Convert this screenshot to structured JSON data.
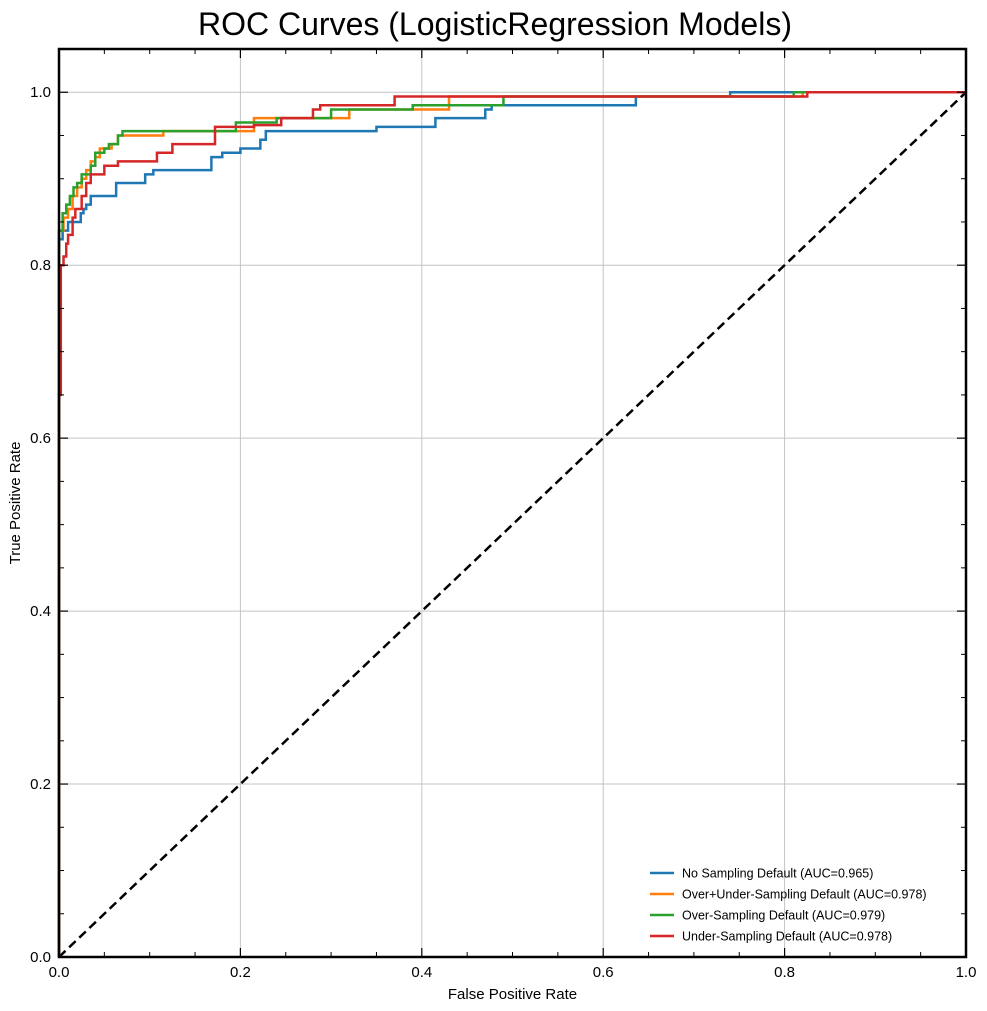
{
  "chart_data": {
    "type": "line",
    "title": "ROC Curves (LogisticRegression Models)",
    "xlabel": "False Positive Rate",
    "ylabel": "True Positive Rate",
    "xlim": [
      0.0,
      1.0
    ],
    "ylim": [
      0.0,
      1.05
    ],
    "xticks": [
      0.0,
      0.2,
      0.4,
      0.6,
      0.8,
      1.0
    ],
    "yticks": [
      0.0,
      0.2,
      0.4,
      0.6,
      0.8,
      1.0
    ],
    "xtick_labels": [
      "0.0",
      "0.2",
      "0.4",
      "0.6",
      "0.8",
      "1.0"
    ],
    "ytick_labels": [
      "0.0",
      "0.2",
      "0.4",
      "0.6",
      "0.8",
      "1.0"
    ],
    "grid": true,
    "legend_position": "lower-right",
    "baseline": {
      "x": [
        0,
        1
      ],
      "y": [
        0,
        1
      ],
      "style": "dashed",
      "color": "#000000"
    },
    "series": [
      {
        "name": "No Sampling Default (AUC=0.965)",
        "color": "#1f77b4",
        "x": [
          0,
          0.0,
          0.004,
          0.004,
          0.01,
          0.01,
          0.024,
          0.024,
          0.027,
          0.027,
          0.03,
          0.03,
          0.035,
          0.035,
          0.063,
          0.063,
          0.095,
          0.095,
          0.104,
          0.104,
          0.168,
          0.168,
          0.18,
          0.18,
          0.2,
          0.2,
          0.222,
          0.222,
          0.228,
          0.228,
          0.35,
          0.35,
          0.415,
          0.415,
          0.47,
          0.47,
          0.477,
          0.477,
          0.636,
          0.636,
          0.74,
          0.74,
          1.0
        ],
        "y": [
          0,
          0.83,
          0.83,
          0.84,
          0.84,
          0.85,
          0.85,
          0.86,
          0.86,
          0.865,
          0.865,
          0.87,
          0.87,
          0.88,
          0.88,
          0.895,
          0.895,
          0.905,
          0.905,
          0.91,
          0.91,
          0.925,
          0.925,
          0.93,
          0.93,
          0.935,
          0.935,
          0.945,
          0.945,
          0.955,
          0.955,
          0.96,
          0.96,
          0.97,
          0.97,
          0.98,
          0.98,
          0.985,
          0.985,
          0.995,
          0.995,
          1.0,
          1.0
        ]
      },
      {
        "name": "Over+Under-Sampling Default (AUC=0.978)",
        "color": "#ff7f0e",
        "x": [
          0,
          0.0,
          0.005,
          0.005,
          0.01,
          0.01,
          0.015,
          0.015,
          0.02,
          0.02,
          0.025,
          0.025,
          0.03,
          0.03,
          0.035,
          0.035,
          0.04,
          0.04,
          0.045,
          0.045,
          0.058,
          0.058,
          0.065,
          0.065,
          0.115,
          0.115,
          0.215,
          0.215,
          0.32,
          0.32,
          0.43,
          0.43,
          0.82,
          0.82,
          1.0
        ],
        "y": [
          0,
          0.84,
          0.84,
          0.855,
          0.855,
          0.865,
          0.865,
          0.88,
          0.88,
          0.89,
          0.89,
          0.9,
          0.9,
          0.91,
          0.91,
          0.92,
          0.92,
          0.925,
          0.925,
          0.935,
          0.935,
          0.94,
          0.94,
          0.95,
          0.95,
          0.955,
          0.955,
          0.97,
          0.97,
          0.98,
          0.98,
          0.995,
          0.995,
          1.0,
          1.0
        ]
      },
      {
        "name": "Over-Sampling Default (AUC=0.979)",
        "color": "#2ca02c",
        "x": [
          0,
          0.0,
          0.004,
          0.004,
          0.008,
          0.008,
          0.012,
          0.012,
          0.016,
          0.016,
          0.02,
          0.02,
          0.025,
          0.025,
          0.035,
          0.035,
          0.04,
          0.04,
          0.05,
          0.05,
          0.055,
          0.055,
          0.065,
          0.065,
          0.07,
          0.07,
          0.195,
          0.195,
          0.24,
          0.24,
          0.3,
          0.3,
          0.39,
          0.39,
          0.49,
          0.49,
          0.81,
          0.81,
          1.0
        ],
        "y": [
          0,
          0.84,
          0.84,
          0.86,
          0.86,
          0.87,
          0.87,
          0.88,
          0.88,
          0.89,
          0.89,
          0.895,
          0.895,
          0.905,
          0.905,
          0.915,
          0.915,
          0.93,
          0.93,
          0.935,
          0.935,
          0.94,
          0.94,
          0.95,
          0.95,
          0.955,
          0.955,
          0.965,
          0.965,
          0.97,
          0.97,
          0.98,
          0.98,
          0.985,
          0.985,
          0.995,
          0.995,
          1.0,
          1.0
        ]
      },
      {
        "name": "Under-Sampling Default (AUC=0.978)",
        "color": "#d62728",
        "x": [
          0,
          0.0,
          0.002,
          0.002,
          0.005,
          0.005,
          0.008,
          0.008,
          0.01,
          0.01,
          0.015,
          0.015,
          0.018,
          0.018,
          0.025,
          0.025,
          0.03,
          0.03,
          0.035,
          0.035,
          0.05,
          0.05,
          0.065,
          0.065,
          0.108,
          0.108,
          0.125,
          0.125,
          0.172,
          0.172,
          0.215,
          0.215,
          0.245,
          0.245,
          0.28,
          0.28,
          0.288,
          0.288,
          0.37,
          0.37,
          0.825,
          0.825,
          1.0
        ],
        "y": [
          0,
          0.65,
          0.65,
          0.8,
          0.8,
          0.81,
          0.81,
          0.825,
          0.825,
          0.835,
          0.835,
          0.855,
          0.855,
          0.865,
          0.865,
          0.88,
          0.88,
          0.895,
          0.895,
          0.905,
          0.905,
          0.915,
          0.915,
          0.92,
          0.92,
          0.93,
          0.93,
          0.94,
          0.94,
          0.96,
          0.96,
          0.962,
          0.962,
          0.97,
          0.97,
          0.98,
          0.98,
          0.985,
          0.985,
          0.995,
          0.995,
          1.0,
          1.0
        ]
      }
    ]
  }
}
